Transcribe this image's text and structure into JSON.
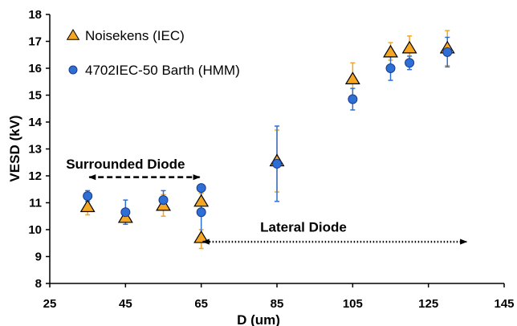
{
  "chart_data": {
    "type": "scatter",
    "xlabel": "D (um)",
    "ylabel": "VESD (kV)",
    "xlim": [
      25,
      145
    ],
    "ylim": [
      8,
      18
    ],
    "xticks": [
      25,
      45,
      65,
      85,
      105,
      125,
      145
    ],
    "yticks": [
      8,
      9,
      10,
      11,
      12,
      13,
      14,
      15,
      16,
      17,
      18
    ],
    "grid": false,
    "legend_position": "top-left",
    "series": [
      {
        "name": "Noisekens (IEC)",
        "marker": "triangle",
        "color": "#F5A623",
        "points": [
          {
            "x": 35,
            "y": 10.85,
            "err_low": 0.3,
            "err_high": 0.3
          },
          {
            "x": 45,
            "y": 10.45,
            "err_low": 0.25,
            "err_high": 0.25
          },
          {
            "x": 55,
            "y": 10.9,
            "err_low": 0.4,
            "err_high": 0.4
          },
          {
            "x": 65,
            "y": 11.05,
            "err_low": 0.3,
            "err_high": 0.3
          },
          {
            "x": 65,
            "y": 9.7,
            "err_low": 0.4,
            "err_high": 0.3
          },
          {
            "x": 85,
            "y": 12.55,
            "err_low": 1.15,
            "err_high": 1.15
          },
          {
            "x": 105,
            "y": 15.6,
            "err_low": 0.6,
            "err_high": 0.6
          },
          {
            "x": 115,
            "y": 16.6,
            "err_low": 0.3,
            "err_high": 0.35
          },
          {
            "x": 120,
            "y": 16.75,
            "err_low": 0.45,
            "err_high": 0.45
          },
          {
            "x": 130,
            "y": 16.75,
            "err_low": 0.65,
            "err_high": 0.65
          }
        ]
      },
      {
        "name": "4702IEC-50 Barth (HMM)",
        "marker": "circle",
        "color": "#2E6FD6",
        "points": [
          {
            "x": 35,
            "y": 11.25,
            "err_low": 0.2,
            "err_high": 0.2
          },
          {
            "x": 45,
            "y": 10.65,
            "err_low": 0.45,
            "err_high": 0.45
          },
          {
            "x": 55,
            "y": 11.1,
            "err_low": 0.35,
            "err_high": 0.35
          },
          {
            "x": 65,
            "y": 11.55,
            "err_low": 0.1,
            "err_high": 0.1
          },
          {
            "x": 65,
            "y": 10.65,
            "err_low": 0.85,
            "err_high": 0.85
          },
          {
            "x": 85,
            "y": 12.45,
            "err_low": 1.4,
            "err_high": 1.4
          },
          {
            "x": 105,
            "y": 14.85,
            "err_low": 0.4,
            "err_high": 0.4
          },
          {
            "x": 115,
            "y": 16.0,
            "err_low": 0.45,
            "err_high": 0.45
          },
          {
            "x": 120,
            "y": 16.2,
            "err_low": 0.25,
            "err_high": 0.25
          },
          {
            "x": 130,
            "y": 16.6,
            "err_low": 0.55,
            "err_high": 0.55
          }
        ]
      }
    ],
    "annotations": [
      {
        "text": "Surrounded Diode",
        "arrow": {
          "x1": 35,
          "x2": 65,
          "y": 11.95,
          "style": "dashed",
          "heads": "both"
        },
        "label_at": {
          "x": 45,
          "y": 12.45
        }
      },
      {
        "text": "Lateral Diode",
        "arrow": {
          "x1": 65,
          "x2": 135.5,
          "y": 9.55,
          "style": "dotted",
          "heads": "both"
        },
        "label_at": {
          "x": 92,
          "y": 10.1
        }
      }
    ]
  }
}
